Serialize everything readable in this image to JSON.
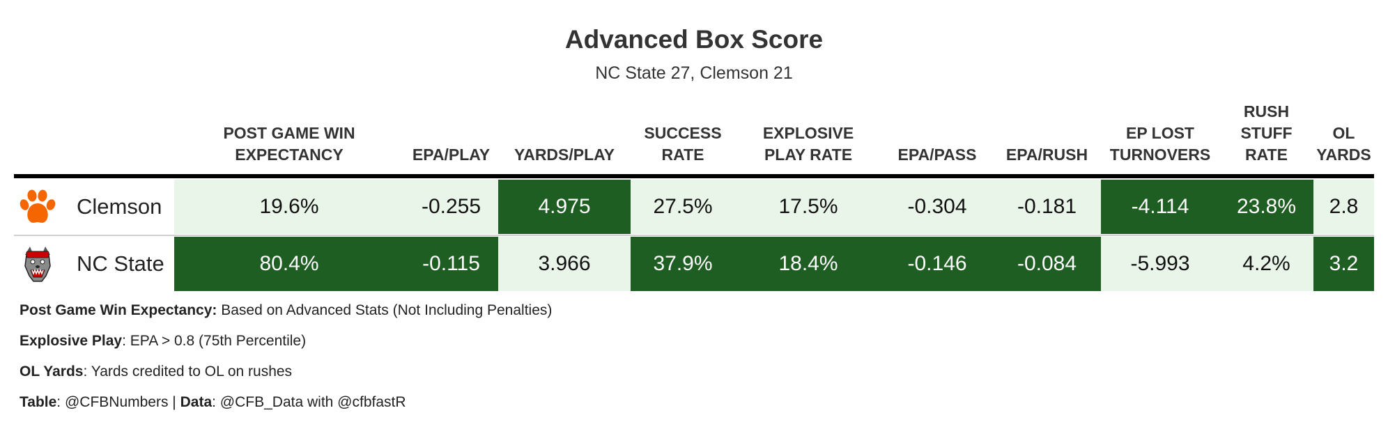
{
  "title": "Advanced Box Score",
  "subtitle": "NC State 27, Clemson 21",
  "colors": {
    "dark_green": "#1e5e22",
    "light_green": "#e9f5e9",
    "header_rule": "#000000"
  },
  "chart_data": {
    "type": "table",
    "columns": [
      "POST GAME WIN\nEXPECTANCY",
      "EPA/PLAY",
      "YARDS/PLAY",
      "SUCCESS\nRATE",
      "EXPLOSIVE\nPLAY RATE",
      "EPA/PASS",
      "EPA/RUSH",
      "EP LOST\nTURNOVERS",
      "RUSH\nSTUFF\nRATE",
      "OL\nYARDS"
    ],
    "rows": [
      {
        "team": "Clemson",
        "logo": "clemson-paw-icon",
        "values": [
          "19.6%",
          "-0.255",
          "4.975",
          "27.5%",
          "17.5%",
          "-0.304",
          "-0.181",
          "-4.114",
          "23.8%",
          "2.8"
        ],
        "highlight": [
          "light",
          "light",
          "dark",
          "light",
          "light",
          "light",
          "light",
          "dark",
          "dark",
          "light"
        ]
      },
      {
        "team": "NC State",
        "logo": "wolf-icon",
        "values": [
          "80.4%",
          "-0.115",
          "3.966",
          "37.9%",
          "18.4%",
          "-0.146",
          "-0.084",
          "-5.993",
          "4.2%",
          "3.2"
        ],
        "highlight": [
          "dark",
          "dark",
          "light",
          "dark",
          "dark",
          "dark",
          "dark",
          "light",
          "light",
          "dark"
        ]
      }
    ]
  },
  "footnotes": [
    {
      "label": "Post Game Win Expectancy:",
      "text": " Based on Advanced Stats (Not Including Penalties)"
    },
    {
      "label": "Explosive Play",
      "text": ": EPA > 0.8 (75th Percentile)"
    },
    {
      "label": "OL Yards",
      "text": ": Yards credited to OL on rushes"
    },
    {
      "label": "Table",
      "text": ": @CFBNumbers | ",
      "label2": "Data",
      "text2": ": @CFB_Data with @cfbfastR"
    }
  ]
}
